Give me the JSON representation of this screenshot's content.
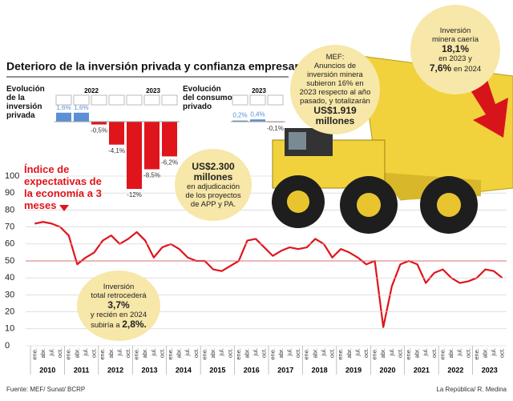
{
  "title": "Deterioro de la inversión privada y confianza empresarial",
  "chart_data": [
    {
      "type": "bar",
      "title": "Evolución de la inversión privada",
      "positive_color": "#5b8fd6",
      "negative_color": "#e0141b",
      "groups": [
        {
          "name": "2022",
          "categories": [
            "1T",
            "2T",
            "3T",
            "4T"
          ],
          "values": [
            1.6,
            1.6,
            -0.5,
            -4.1
          ],
          "value_labels": [
            "1,6%",
            "1,6%",
            "-0,5%",
            "-4,1%"
          ]
        },
        {
          "name": "2023",
          "categories": [
            "1T",
            "2T",
            "3T"
          ],
          "values": [
            -12,
            -8.5,
            -6.2
          ],
          "value_labels": [
            "-12%",
            "-8,5%",
            "-6,2%"
          ]
        }
      ]
    },
    {
      "type": "bar",
      "title": "Evolución del consumo privado",
      "positive_color": "#5b8fd6",
      "negative_color": "#e0141b",
      "groups": [
        {
          "name": "2023",
          "categories": [
            "1T",
            "2T",
            "3T"
          ],
          "values": [
            0.2,
            0.4,
            -0.1
          ],
          "value_labels": [
            "0,2%",
            "0,4%",
            "-0,1%"
          ]
        }
      ]
    },
    {
      "type": "line",
      "title": "Índice de expectativas de la economía a 3 meses",
      "color": "#e0141b",
      "categories": [
        "ene.",
        "abr.",
        "jul.",
        "oct.",
        "ene.",
        "abr.",
        "jul.",
        "oct.",
        "ene.",
        "abr.",
        "jul.",
        "oct.",
        "ene.",
        "abr.",
        "jul.",
        "oct.",
        "ene.",
        "abr.",
        "jul.",
        "oct.",
        "ene.",
        "abr.",
        "jul.",
        "oct.",
        "ene.",
        "abr.",
        "jul.",
        "oct.",
        "ene.",
        "abr.",
        "jul.",
        "oct.",
        "ene.",
        "abr.",
        "jul.",
        "oct.",
        "ene.",
        "abr.",
        "jul.",
        "oct.",
        "ene.",
        "abr.",
        "jul.",
        "oct.",
        "ene.",
        "abr.",
        "jul.",
        "oct.",
        "ene.",
        "abr.",
        "jul.",
        "oct.",
        "ene.",
        "abr.",
        "jul.",
        "oct."
      ],
      "years": [
        "2010",
        "2011",
        "2012",
        "2013",
        "2014",
        "2015",
        "2016",
        "2017",
        "2018",
        "2019",
        "2020",
        "2021",
        "2022",
        "2023"
      ],
      "values": [
        72,
        73,
        72,
        70,
        65,
        48,
        52,
        55,
        62,
        65,
        60,
        63,
        67,
        62,
        52,
        58,
        60,
        57,
        52,
        50,
        50,
        45,
        44,
        47,
        50,
        62,
        63,
        58,
        53,
        56,
        58,
        57,
        58,
        63,
        60,
        52,
        57,
        55,
        52,
        48,
        50,
        11,
        35,
        48,
        50,
        48,
        37,
        43,
        45,
        40,
        37,
        38,
        40,
        45,
        44,
        40
      ],
      "ylim": [
        0,
        100
      ],
      "yticks": [
        0,
        10,
        20,
        30,
        40,
        50,
        60,
        70,
        80,
        90,
        100
      ],
      "reference": 50,
      "grid": true
    }
  ],
  "notes": [
    {
      "lines": [
        "Inversión",
        "minera caería",
        "18,1%",
        "en 2023 y",
        "7,6%",
        "en 2024"
      ]
    },
    {
      "lines": [
        "MEF:",
        "Anuncios de",
        "inversión minera",
        "subieron 16% en",
        "2023 respecto al año",
        "pasado, y totalizarán",
        "US$1.919",
        "millones"
      ]
    },
    {
      "lines": [
        "US$2.300",
        "millones",
        "en adjudicación",
        "de los proyectos",
        "de APP y PA."
      ]
    },
    {
      "lines": [
        "Inversión",
        "total retrocederá",
        "3,7%",
        "y recién en 2024",
        "subiría a",
        "2,8%."
      ]
    }
  ],
  "footer": {
    "source": "Fuente: MEF/ Sunat/ BCRP",
    "credit": "La República/ R. Medina"
  }
}
